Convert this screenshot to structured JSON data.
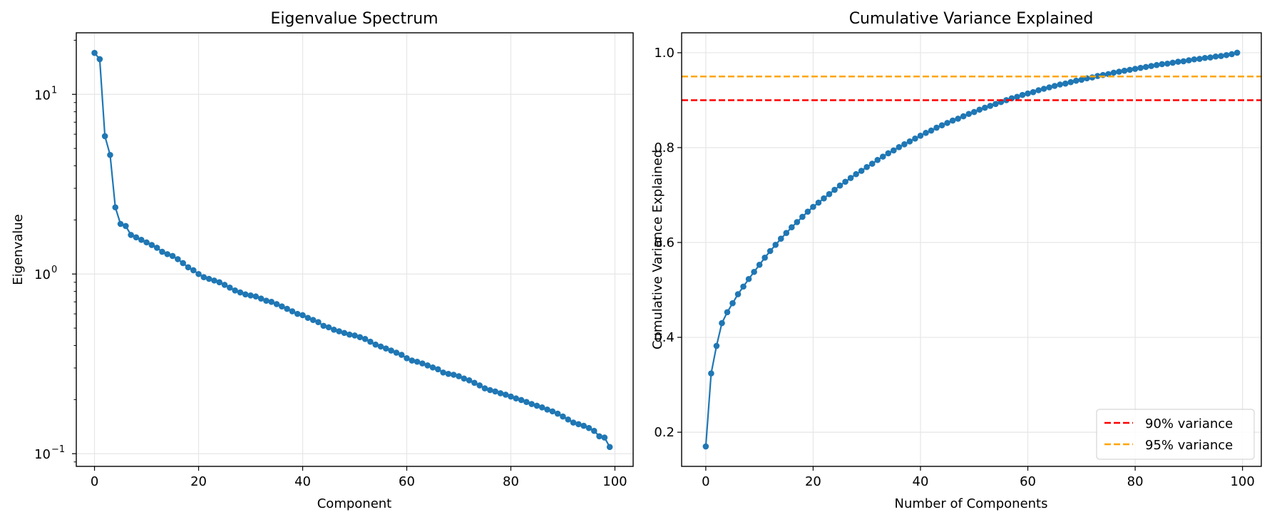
{
  "chart_data": [
    {
      "type": "line",
      "title": "Eigenvalue Spectrum",
      "xlabel": "Component",
      "ylabel": "Eigenvalue",
      "yscale": "log",
      "grid": true,
      "xlim": [
        -3.5,
        103.5
      ],
      "ylim": [
        0.085,
        22
      ],
      "xticks": [
        0,
        20,
        40,
        60,
        80,
        100
      ],
      "xtick_labels": [
        "0",
        "20",
        "40",
        "60",
        "80",
        "100"
      ],
      "yticks": [
        0.1,
        1,
        10
      ],
      "ytick_labels": [
        "10",
        "10",
        "10"
      ],
      "ytick_exponents": [
        "−1",
        "0",
        "1"
      ],
      "series": [
        {
          "color": "#1f77b4",
          "x": [
            0,
            1,
            2,
            3,
            4,
            5,
            6,
            7,
            8,
            9,
            10,
            11,
            12,
            13,
            14,
            15,
            16,
            17,
            18,
            19,
            20,
            21,
            22,
            23,
            24,
            25,
            26,
            27,
            28,
            29,
            30,
            31,
            32,
            33,
            34,
            35,
            36,
            37,
            38,
            39,
            40,
            41,
            42,
            43,
            44,
            45,
            46,
            47,
            48,
            49,
            50,
            51,
            52,
            53,
            54,
            55,
            56,
            57,
            58,
            59,
            60,
            61,
            62,
            63,
            64,
            65,
            66,
            67,
            68,
            69,
            70,
            71,
            72,
            73,
            74,
            75,
            76,
            77,
            78,
            79,
            80,
            81,
            82,
            83,
            84,
            85,
            86,
            87,
            88,
            89,
            90,
            91,
            92,
            93,
            94,
            95,
            96,
            97,
            98,
            99
          ],
          "y": [
            17.0,
            15.7,
            5.85,
            4.6,
            2.35,
            1.9,
            1.85,
            1.65,
            1.6,
            1.55,
            1.5,
            1.45,
            1.4,
            1.33,
            1.29,
            1.26,
            1.21,
            1.15,
            1.09,
            1.05,
            1.0,
            0.96,
            0.94,
            0.92,
            0.9,
            0.87,
            0.84,
            0.81,
            0.79,
            0.77,
            0.76,
            0.75,
            0.73,
            0.71,
            0.7,
            0.68,
            0.66,
            0.64,
            0.62,
            0.6,
            0.59,
            0.57,
            0.555,
            0.54,
            0.515,
            0.505,
            0.49,
            0.48,
            0.47,
            0.46,
            0.455,
            0.445,
            0.435,
            0.42,
            0.405,
            0.395,
            0.385,
            0.375,
            0.365,
            0.355,
            0.34,
            0.33,
            0.325,
            0.318,
            0.31,
            0.302,
            0.295,
            0.283,
            0.278,
            0.275,
            0.27,
            0.262,
            0.256,
            0.248,
            0.24,
            0.231,
            0.226,
            0.222,
            0.217,
            0.213,
            0.208,
            0.203,
            0.199,
            0.194,
            0.189,
            0.185,
            0.181,
            0.176,
            0.172,
            0.167,
            0.161,
            0.155,
            0.149,
            0.146,
            0.143,
            0.139,
            0.134,
            0.125,
            0.123,
            0.109
          ]
        }
      ]
    },
    {
      "type": "line",
      "title": "Cumulative Variance Explained",
      "xlabel": "Number of Components",
      "ylabel": "Cumulative Variance Explained",
      "grid": true,
      "xlim": [
        -4.5,
        103.5
      ],
      "ylim": [
        0.128,
        1.042
      ],
      "xticks": [
        0,
        20,
        40,
        60,
        80,
        100
      ],
      "xtick_labels": [
        "0",
        "20",
        "40",
        "60",
        "80",
        "100"
      ],
      "yticks": [
        0.2,
        0.4,
        0.6,
        0.8,
        1.0
      ],
      "ytick_labels": [
        "0.2",
        "0.4",
        "0.6",
        "0.8",
        "1.0"
      ],
      "legend_position": "lower right",
      "hlines": [
        {
          "y": 0.9,
          "label": "90% variance",
          "color": "#ff0000",
          "style": "dashed"
        },
        {
          "y": 0.95,
          "label": "95% variance",
          "color": "#ffa500",
          "style": "dashed"
        }
      ],
      "series": [
        {
          "color": "#1f77b4",
          "x": [
            0,
            1,
            2,
            3,
            4,
            5,
            6,
            7,
            8,
            9,
            10,
            11,
            12,
            13,
            14,
            15,
            16,
            17,
            18,
            19,
            20,
            21,
            22,
            23,
            24,
            25,
            26,
            27,
            28,
            29,
            30,
            31,
            32,
            33,
            34,
            35,
            36,
            37,
            38,
            39,
            40,
            41,
            42,
            43,
            44,
            45,
            46,
            47,
            48,
            49,
            50,
            51,
            52,
            53,
            54,
            55,
            56,
            57,
            58,
            59,
            60,
            61,
            62,
            63,
            64,
            65,
            66,
            67,
            68,
            69,
            70,
            71,
            72,
            73,
            74,
            75,
            76,
            77,
            78,
            79,
            80,
            81,
            82,
            83,
            84,
            85,
            86,
            87,
            88,
            89,
            90,
            91,
            92,
            93,
            94,
            95,
            96,
            97,
            98,
            99
          ],
          "y": [
            0.17,
            0.324,
            0.382,
            0.43,
            0.453,
            0.472,
            0.491,
            0.507,
            0.523,
            0.538,
            0.553,
            0.568,
            0.582,
            0.595,
            0.608,
            0.62,
            0.632,
            0.643,
            0.654,
            0.665,
            0.675,
            0.684,
            0.693,
            0.702,
            0.711,
            0.72,
            0.728,
            0.736,
            0.744,
            0.751,
            0.759,
            0.766,
            0.774,
            0.781,
            0.788,
            0.794,
            0.801,
            0.807,
            0.813,
            0.819,
            0.825,
            0.831,
            0.836,
            0.842,
            0.847,
            0.852,
            0.857,
            0.861,
            0.866,
            0.871,
            0.875,
            0.88,
            0.884,
            0.888,
            0.892,
            0.896,
            0.9,
            0.904,
            0.907,
            0.911,
            0.914,
            0.917,
            0.921,
            0.924,
            0.927,
            0.93,
            0.933,
            0.935,
            0.938,
            0.941,
            0.943,
            0.946,
            0.948,
            0.951,
            0.953,
            0.955,
            0.958,
            0.96,
            0.962,
            0.964,
            0.966,
            0.968,
            0.97,
            0.972,
            0.974,
            0.976,
            0.977,
            0.979,
            0.981,
            0.982,
            0.984,
            0.986,
            0.987,
            0.989,
            0.99,
            0.992,
            0.993,
            0.995,
            0.997,
            1.0
          ]
        }
      ]
    }
  ]
}
